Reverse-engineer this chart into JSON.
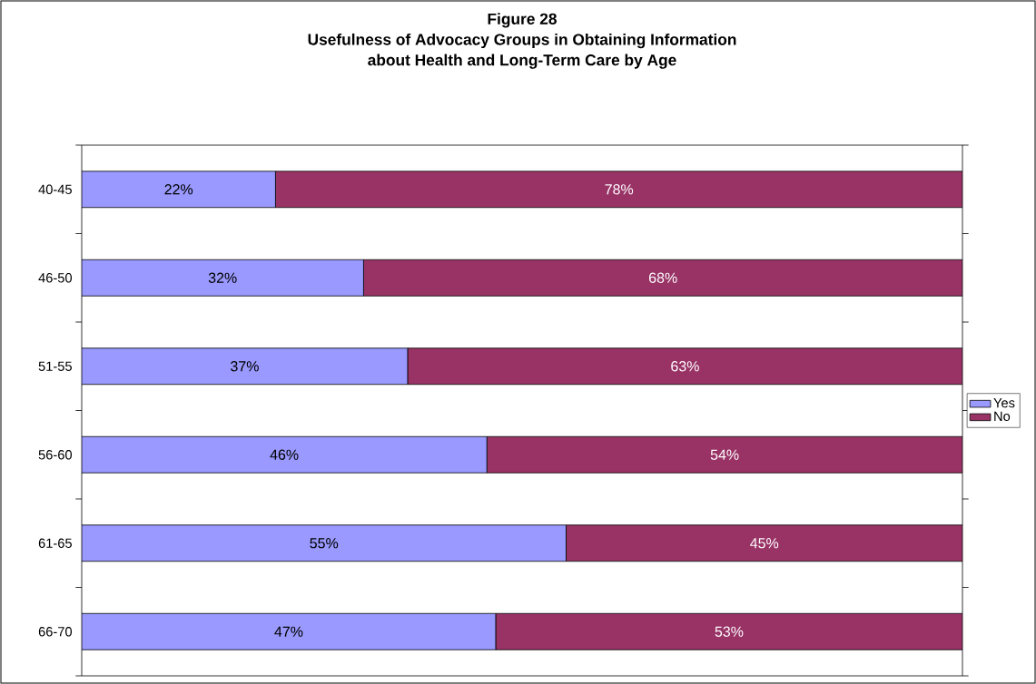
{
  "chart_data": {
    "type": "bar",
    "orientation": "horizontal",
    "stacked": true,
    "title": "Figure 28\nUsefulness of Advocacy Groups in Obtaining Information\nabout Health and Long-Term Care by Age",
    "categories": [
      "40-45",
      "46-50",
      "51-55",
      "56-60",
      "61-65",
      "66-70"
    ],
    "series": [
      {
        "name": "Yes",
        "color": "#9999ff",
        "values": [
          22,
          32,
          37,
          46,
          55,
          47
        ],
        "value_labels": [
          "22%",
          "32%",
          "37%",
          "46%",
          "55%",
          "47%"
        ]
      },
      {
        "name": "No",
        "color": "#993366",
        "values": [
          78,
          68,
          63,
          54,
          45,
          53
        ],
        "value_labels": [
          "78%",
          "68%",
          "63%",
          "54%",
          "45%",
          "53%"
        ]
      }
    ],
    "xlim": [
      0,
      100
    ],
    "tick_labels": "y",
    "legend": "right"
  }
}
